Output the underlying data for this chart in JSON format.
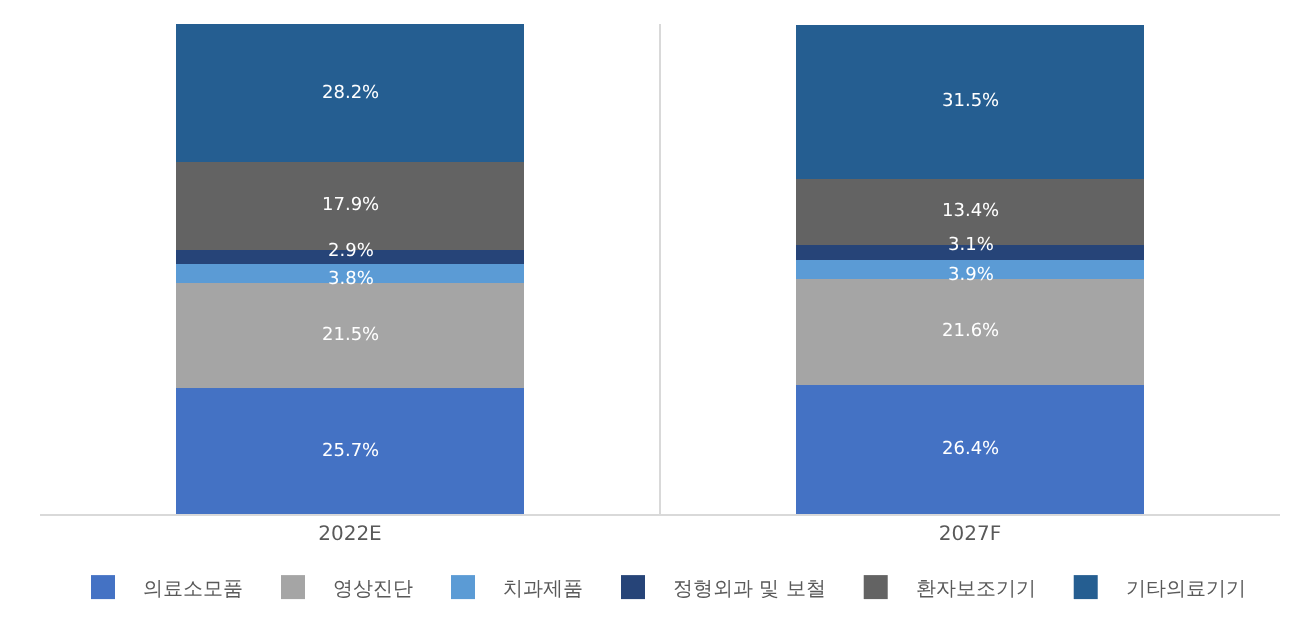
{
  "chart_data": {
    "type": "bar",
    "stacked": true,
    "categories": [
      "2022E",
      "2027F"
    ],
    "tick_labels": "x",
    "legend": "bottom",
    "series": [
      {
        "name": "의료소모품",
        "color": "#4472c4",
        "values": [
          25.7,
          26.4
        ],
        "value_labels": [
          "25.7%",
          "26.4%"
        ]
      },
      {
        "name": "영상진단",
        "color": "#a5a5a5",
        "values": [
          21.5,
          21.6
        ],
        "value_labels": [
          "21.5%",
          "21.6%"
        ]
      },
      {
        "name": "치과제품",
        "color": "#5b9bd5",
        "values": [
          3.8,
          3.9
        ],
        "value_labels": [
          "3.8%",
          "3.9%"
        ]
      },
      {
        "name": "정형외과 및 보철",
        "color": "#264478",
        "values": [
          2.9,
          3.1
        ],
        "value_labels": [
          "2.9%",
          "3.1%"
        ]
      },
      {
        "name": "환자보조기기",
        "color": "#636363",
        "values": [
          17.9,
          13.4
        ],
        "value_labels": [
          "17.9%",
          "13.4%"
        ]
      },
      {
        "name": "기타의료기기",
        "color": "#255e91",
        "values": [
          28.2,
          31.5
        ],
        "value_labels": [
          "28.2%",
          "31.5%"
        ]
      }
    ]
  }
}
